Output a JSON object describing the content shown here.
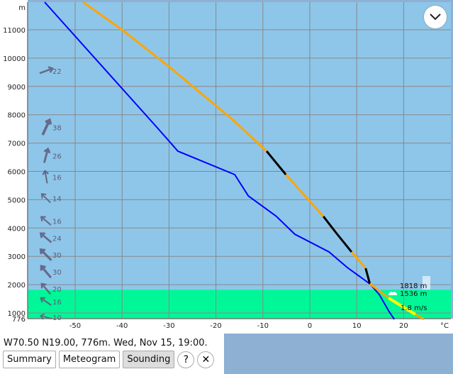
{
  "location_line": "W70.50 N19.00, 776m. Wed, Nov 15, 19:00.",
  "buttons": {
    "summary": "Summary",
    "meteogram": "Meteogram",
    "sounding": "Sounding",
    "help": "?",
    "close": "✕"
  },
  "active_tab": "Sounding",
  "chart_data": {
    "type": "line",
    "xlabel": "°C",
    "ylabel": "m",
    "xlim": [
      -55,
      30
    ],
    "ylim": [
      776,
      12000
    ],
    "x_ticks": [
      -50,
      -40,
      -30,
      -20,
      -10,
      0,
      10,
      20
    ],
    "y_ticks": [
      1000,
      2000,
      3000,
      4000,
      5000,
      6000,
      7000,
      8000,
      9000,
      10000,
      11000
    ],
    "y_ground_label": "776",
    "grid": true,
    "colors": {
      "sky": "#8ec6ea",
      "boundary_layer": "#00f797",
      "temperature": "#ffa500",
      "dewpoint": "#0000ff",
      "lapse": "#000000",
      "surface_layer": "#ffff00"
    },
    "boundary_layer_top_m": 1818,
    "dewpoint": [
      [
        -56.5,
        11977
      ],
      [
        -32.5,
        7541
      ],
      [
        -28.1,
        6714
      ],
      [
        -16,
        5887
      ],
      [
        -13.1,
        5135
      ],
      [
        -7.1,
        4409
      ],
      [
        -3.2,
        3782
      ],
      [
        4.1,
        3155
      ],
      [
        8,
        2604
      ],
      [
        12.8,
        2028
      ],
      [
        14.8,
        1652
      ],
      [
        16.8,
        1075
      ],
      [
        18,
        776
      ]
    ],
    "temperature_segments": [
      {
        "color": "orange",
        "points": [
          [
            -48.3,
            11977
          ],
          [
            -40,
            11000
          ],
          [
            -29.8,
            9672
          ],
          [
            -16.2,
            7792
          ],
          [
            -9.2,
            6714
          ]
        ]
      },
      {
        "color": "black",
        "points": [
          [
            -9.2,
            6714
          ],
          [
            -5.1,
            5887
          ]
        ]
      },
      {
        "color": "orange",
        "points": [
          [
            -5.1,
            5887
          ],
          [
            2.9,
            4409
          ]
        ]
      },
      {
        "color": "black",
        "points": [
          [
            2.9,
            4409
          ],
          [
            5.6,
            3832
          ],
          [
            8.9,
            3155
          ]
        ]
      },
      {
        "color": "orange",
        "points": [
          [
            8.9,
            3155
          ],
          [
            11.9,
            2579
          ]
        ]
      },
      {
        "color": "black",
        "points": [
          [
            11.9,
            2579
          ],
          [
            12.8,
            2028
          ]
        ]
      },
      {
        "color": "orange",
        "points": [
          [
            12.8,
            2028
          ],
          [
            16.8,
            1526
          ]
        ]
      },
      {
        "color": "yellow",
        "points": [
          [
            16.8,
            1526
          ],
          [
            22.5,
            950
          ]
        ]
      },
      {
        "color": "orange",
        "points": [
          [
            22.5,
            950
          ],
          [
            24.3,
            776
          ]
        ]
      }
    ],
    "annotations": [
      "1818 m",
      "1536 m",
      "1.8 m/s"
    ],
    "wind": [
      {
        "h": 9700,
        "speed": 22,
        "dir_deg": 70
      },
      {
        "h": 7700,
        "speed": 38,
        "dir_deg": 25
      },
      {
        "h": 6700,
        "speed": 26,
        "dir_deg": 15
      },
      {
        "h": 5950,
        "speed": 16,
        "dir_deg": -10
      },
      {
        "h": 5200,
        "speed": 14,
        "dir_deg": -45
      },
      {
        "h": 4400,
        "speed": 16,
        "dir_deg": -50
      },
      {
        "h": 3800,
        "speed": 24,
        "dir_deg": -50
      },
      {
        "h": 3200,
        "speed": 30,
        "dir_deg": -45
      },
      {
        "h": 2600,
        "speed": 30,
        "dir_deg": -40
      },
      {
        "h": 2000,
        "speed": 20,
        "dir_deg": -40
      },
      {
        "h": 1550,
        "speed": 16,
        "dir_deg": -55
      },
      {
        "h": 776,
        "speed": 10,
        "dir_deg": -75
      }
    ]
  }
}
